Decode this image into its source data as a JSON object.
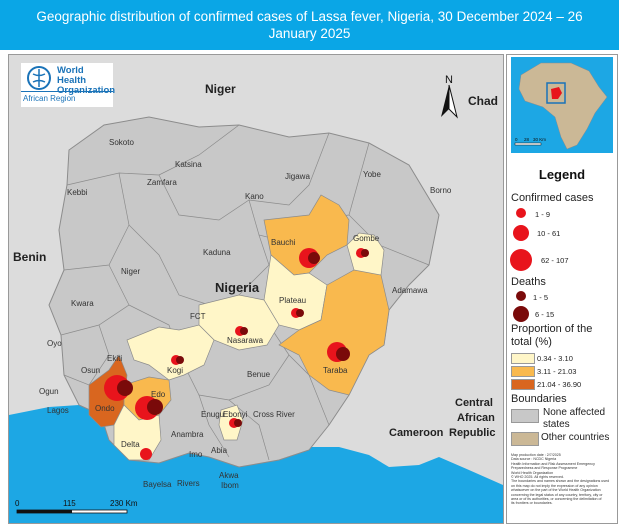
{
  "title": "Geographic distribution of confirmed cases of Lassa fever, Nigeria, 30 December 2024 – 26 January 2025",
  "logo": {
    "name_line1": "World Health",
    "name_line2": "Organization",
    "region": "African Region"
  },
  "north_arrow": "N",
  "scale_bar": {
    "labels": [
      "0",
      "115",
      "230 Km"
    ]
  },
  "countries": [
    "Niger",
    "Chad",
    "Benin",
    "Nigeria",
    "Cameroon",
    "Central",
    "African",
    "Republic"
  ],
  "states": [
    {
      "name": "Sokoto",
      "cases_class": "none",
      "bg": "#dcdcdc"
    },
    {
      "name": "Katsina",
      "cases_class": "none"
    },
    {
      "name": "Zamfara",
      "cases_class": "none"
    },
    {
      "name": "Kebbi",
      "cases_class": "none"
    },
    {
      "name": "Jigawa",
      "cases_class": "none"
    },
    {
      "name": "Yobe",
      "cases_class": "none"
    },
    {
      "name": "Borno",
      "cases_class": "none"
    },
    {
      "name": "Kano",
      "cases_class": "none"
    },
    {
      "name": "Bauchi",
      "cases_class": "3.11 - 21.03"
    },
    {
      "name": "Gombe",
      "cases_class": "0.34 - 3.10"
    },
    {
      "name": "Kaduna",
      "cases_class": "none"
    },
    {
      "name": "Niger",
      "cases_class": "none"
    },
    {
      "name": "Kwara",
      "cases_class": "none"
    },
    {
      "name": "Adamawa",
      "cases_class": "none"
    },
    {
      "name": "FCT",
      "cases_class": "none"
    },
    {
      "name": "Plateau",
      "cases_class": "0.34 - 3.10"
    },
    {
      "name": "Oyo",
      "cases_class": "none"
    },
    {
      "name": "Nasarawa",
      "cases_class": "0.34 - 3.10"
    },
    {
      "name": "Taraba",
      "cases_class": "3.11 - 21.03"
    },
    {
      "name": "Osun",
      "cases_class": "none"
    },
    {
      "name": "Ekiti",
      "cases_class": "none"
    },
    {
      "name": "Kogi",
      "cases_class": "0.34 - 3.10"
    },
    {
      "name": "Benue",
      "cases_class": "none"
    },
    {
      "name": "Ogun",
      "cases_class": "none"
    },
    {
      "name": "Lagos",
      "cases_class": "none"
    },
    {
      "name": "Ondo",
      "cases_class": "21.04 - 36.90"
    },
    {
      "name": "Edo",
      "cases_class": "3.11 - 21.03"
    },
    {
      "name": "Enugu",
      "cases_class": "none"
    },
    {
      "name": "Ebonyi",
      "cases_class": "0.34 - 3.10"
    },
    {
      "name": "Cross River",
      "cases_class": "none"
    },
    {
      "name": "Anambra",
      "cases_class": "none"
    },
    {
      "name": "Delta",
      "cases_class": "0.34 - 3.10"
    },
    {
      "name": "Imo",
      "cases_class": "none"
    },
    {
      "name": "Abia",
      "cases_class": "none"
    },
    {
      "name": "Akwa",
      "cases_class": "none"
    },
    {
      "name": "Ibom",
      "cases_class": "none"
    },
    {
      "name": "Bayelsa",
      "cases_class": "none"
    },
    {
      "name": "Rivers",
      "cases_class": "none"
    }
  ],
  "inset": {
    "scale_labels": [
      "0",
      "28",
      "30 Km"
    ]
  },
  "legend": {
    "title": "Legend",
    "cases_heading": "Confirmed cases",
    "cases_classes": [
      "1 - 9",
      "10 - 61",
      "62 - 107"
    ],
    "deaths_heading": "Deaths",
    "deaths_classes": [
      "1 - 5",
      "6 - 15"
    ],
    "proportion_heading_1": "Proportion of the",
    "proportion_heading_2": "total (%)",
    "proportion_classes": [
      {
        "label": "0.34 - 3.10",
        "color": "#fff6c8"
      },
      {
        "label": "3.11 - 21.03",
        "color": "#f9b94e"
      },
      {
        "label": "21.04 - 36.90",
        "color": "#d9661f"
      }
    ],
    "boundaries_heading": "Boundaries",
    "boundary_none_1": "None affected",
    "boundary_none_2": "states",
    "boundary_other": "Other countries",
    "colors": {
      "cases": "#e8141c",
      "deaths": "#7a0a0a",
      "none": "#c8c8c8",
      "other": "#cbb896"
    }
  },
  "disclaimer": "Map production date : 2/7/2025\nData source : NCDC Nigeria\nHealth Information and Risk Assessment Emergency\nPreparedness and Response Programme\nWorld Health Organization\n© WHO 2025. All rights reserved.\nThe boundaries and names shown and the designations used\non this map do not imply the expression of any opinion\nwhatsoever on the part of the World Health Organization\nconcerning the legal status of any country, territory, city or\narea or of its authorities, or concerning the delimitation of\nits frontiers or boundaries."
}
